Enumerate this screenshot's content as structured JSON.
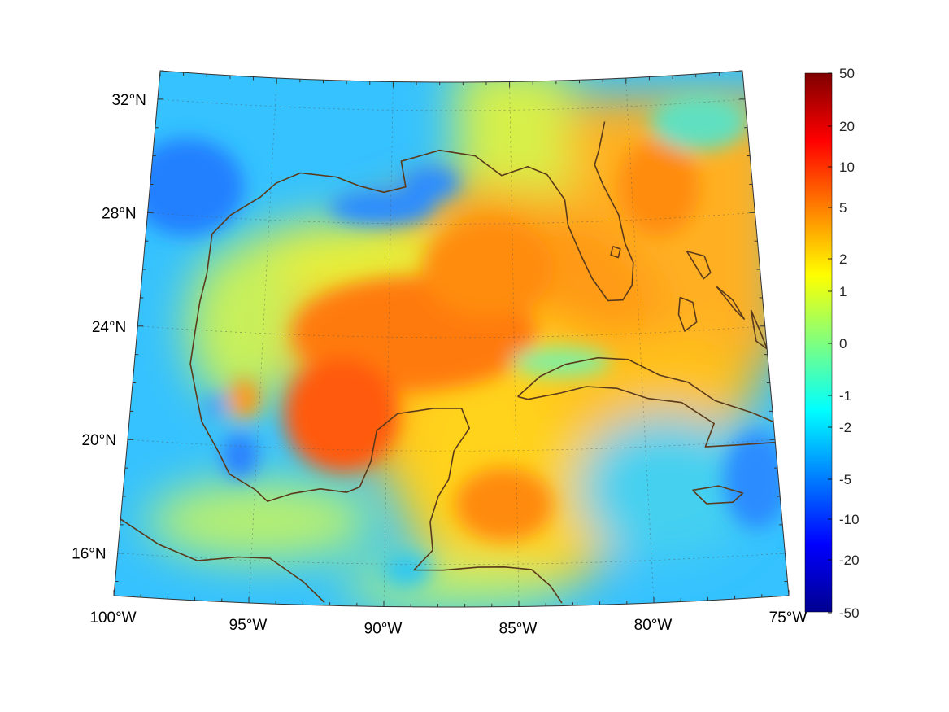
{
  "map": {
    "projection": "conic",
    "extent": {
      "lon": [
        -100,
        -75
      ],
      "lat": [
        14.5,
        33
      ]
    },
    "lat_labels": [
      {
        "value": 32,
        "text": "32°N"
      },
      {
        "value": 28,
        "text": "28°N"
      },
      {
        "value": 24,
        "text": "24°N"
      },
      {
        "value": 20,
        "text": "20°N"
      },
      {
        "value": 16,
        "text": "16°N"
      }
    ],
    "lon_labels": [
      {
        "value": -100,
        "text": "100°W"
      },
      {
        "value": -95,
        "text": "95°W"
      },
      {
        "value": -90,
        "text": "90°W"
      },
      {
        "value": -85,
        "text": "85°W"
      },
      {
        "value": -80,
        "text": "80°W"
      },
      {
        "value": -75,
        "text": "75°W"
      }
    ],
    "coastline_color": "#5a3a1a",
    "grid": true
  },
  "colorbar": {
    "colormap": "jet",
    "scale": "symmetric-log",
    "ticks": [
      "50",
      "20",
      "10",
      "5",
      "2",
      "1",
      "0",
      "-1",
      "-2",
      "-5",
      "-10",
      "-20",
      "-50"
    ]
  }
}
